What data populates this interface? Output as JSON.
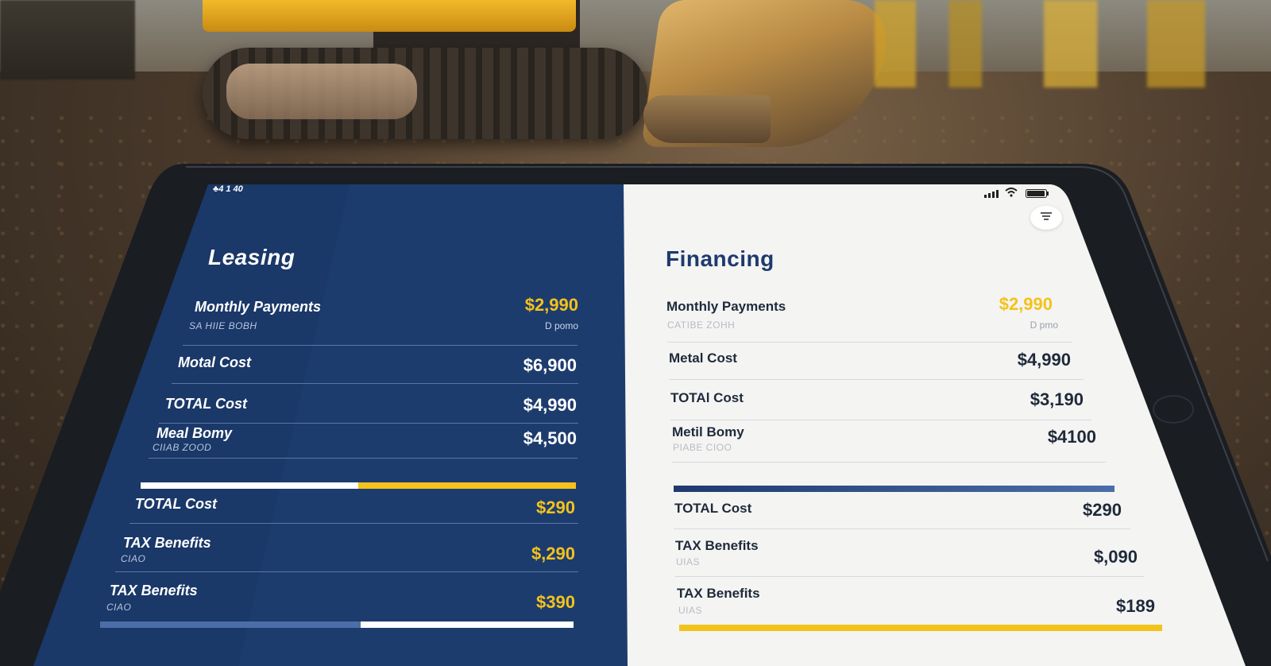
{
  "status_bar": {
    "time": "♣4 1 40"
  },
  "leasing": {
    "title": "Leasing",
    "rows": [
      {
        "label": "Monthly Payments",
        "sub": "SA HIIE BOBH",
        "value": "$2,990",
        "note": "D pomo"
      },
      {
        "label": "Motal Cost",
        "value": "$6,900"
      },
      {
        "label": "TOTAL Cost",
        "value": "$4,990"
      },
      {
        "label": "Meal Bomy",
        "sub": "CIIAB ZOOD",
        "value": "$4,500"
      }
    ],
    "summary": [
      {
        "label": "TOTAL Cost",
        "value": "$290"
      },
      {
        "label": "TAX Benefits",
        "sub": "CIAO",
        "value": "$,290"
      },
      {
        "label": "TAX Benefits",
        "sub": "CIAO",
        "value": "$390"
      }
    ],
    "progress_top": 0.5,
    "progress_bottom": 0.55
  },
  "financing": {
    "title": "Financing",
    "rows": [
      {
        "label": "Monthly Payments",
        "sub": "CATIBE ZOHH",
        "value": "$2,990",
        "note": "D pmo"
      },
      {
        "label": "Metal Cost",
        "value": "$4,990"
      },
      {
        "label": "TOTAl Cost",
        "value": "$3,190"
      },
      {
        "label": "Metil Bomy",
        "sub": "PIABE CIOO",
        "value": "$4100"
      }
    ],
    "summary": [
      {
        "label": "TOTAL Cost",
        "value": "$290"
      },
      {
        "label": "TAX Benefits",
        "sub": "UIAS",
        "value": "$,090"
      },
      {
        "label": "TAX Benefits",
        "sub": "UIAS",
        "value": "$189"
      }
    ]
  },
  "icons": {
    "signal": "signal-icon",
    "wifi": "wifi-icon",
    "battery": "battery-icon",
    "filter": "filter-icon"
  },
  "colors": {
    "leasing_bg": "#1d3c6e",
    "financing_bg": "#f4f4f3",
    "accent_gold": "#f4c21b",
    "accent_blue": "#2f4f86"
  }
}
